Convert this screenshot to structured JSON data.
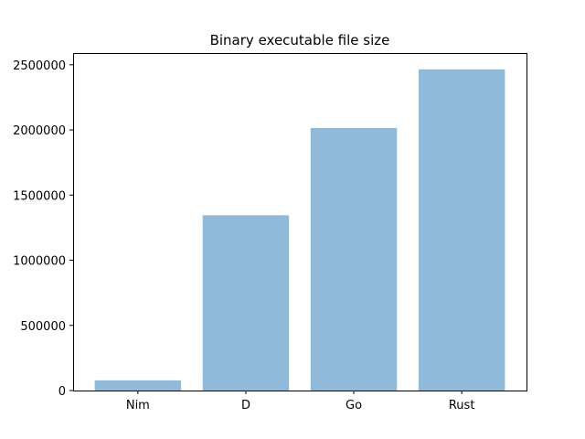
{
  "chart_data": {
    "type": "bar",
    "title": "Binary executable file size",
    "xlabel": "",
    "ylabel": "",
    "categories": [
      "Nim",
      "D",
      "Go",
      "Rust"
    ],
    "values": [
      78000,
      1345000,
      2015000,
      2465000
    ],
    "ylim": [
      0,
      2590000
    ],
    "yticks": [
      0,
      500000,
      1000000,
      1500000,
      2000000,
      2500000
    ],
    "ytick_labels": [
      "0",
      "500000",
      "1000000",
      "1500000",
      "2000000",
      "2500000"
    ],
    "grid": false,
    "legend": "none",
    "bar_color": "#8fbad9"
  }
}
